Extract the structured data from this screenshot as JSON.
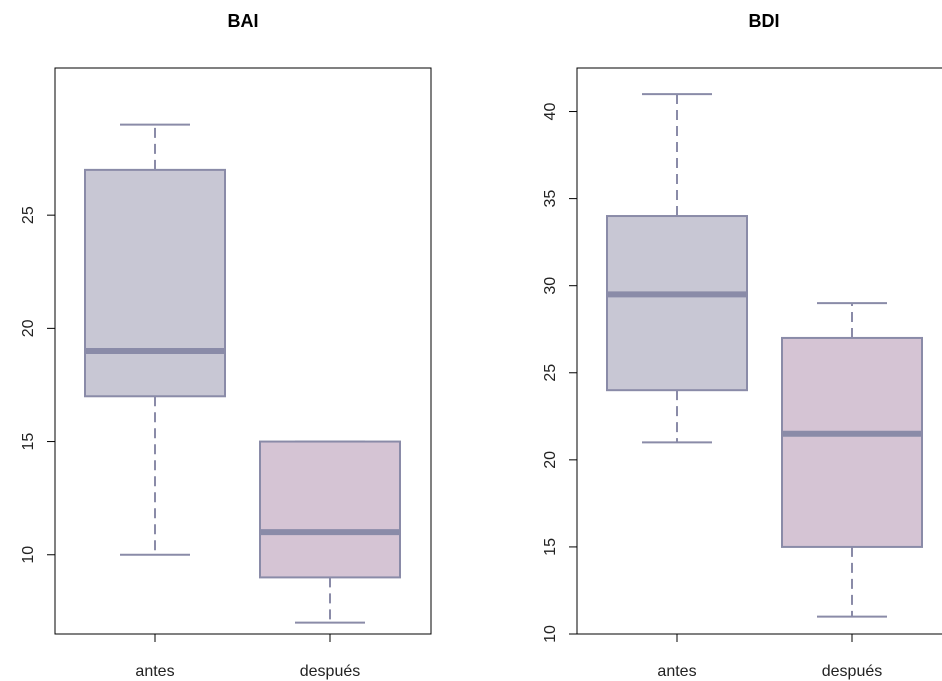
{
  "chart_data": [
    {
      "type": "box",
      "title": "BAI",
      "xlabel": "",
      "ylabel": "",
      "ylim": [
        6.5,
        31.5
      ],
      "yticks": [
        10,
        15,
        20,
        25
      ],
      "categories": [
        "antes",
        "después"
      ],
      "boxes": [
        {
          "category": "antes",
          "min": 10,
          "q1": 17,
          "median": 19,
          "q3": 27,
          "max": 29,
          "fill": "#c8c7d4"
        },
        {
          "category": "después",
          "min": 7,
          "q1": 9,
          "median": 11,
          "q3": 15,
          "max": 15,
          "fill": "#d5c4d4"
        }
      ],
      "line_color": "#8a8ba8"
    },
    {
      "type": "box",
      "title": "BDI",
      "xlabel": "",
      "ylabel": "",
      "ylim": [
        10,
        42.5
      ],
      "yticks": [
        10,
        15,
        20,
        25,
        30,
        35,
        40
      ],
      "categories": [
        "antes",
        "después"
      ],
      "boxes": [
        {
          "category": "antes",
          "min": 21,
          "q1": 24,
          "median": 29.5,
          "q3": 34,
          "max": 41,
          "fill": "#c8c7d4"
        },
        {
          "category": "después",
          "min": 11,
          "q1": 15,
          "median": 21.5,
          "q3": 27,
          "max": 29,
          "fill": "#d5c4d4"
        }
      ],
      "line_color": "#8a8ba8"
    }
  ]
}
